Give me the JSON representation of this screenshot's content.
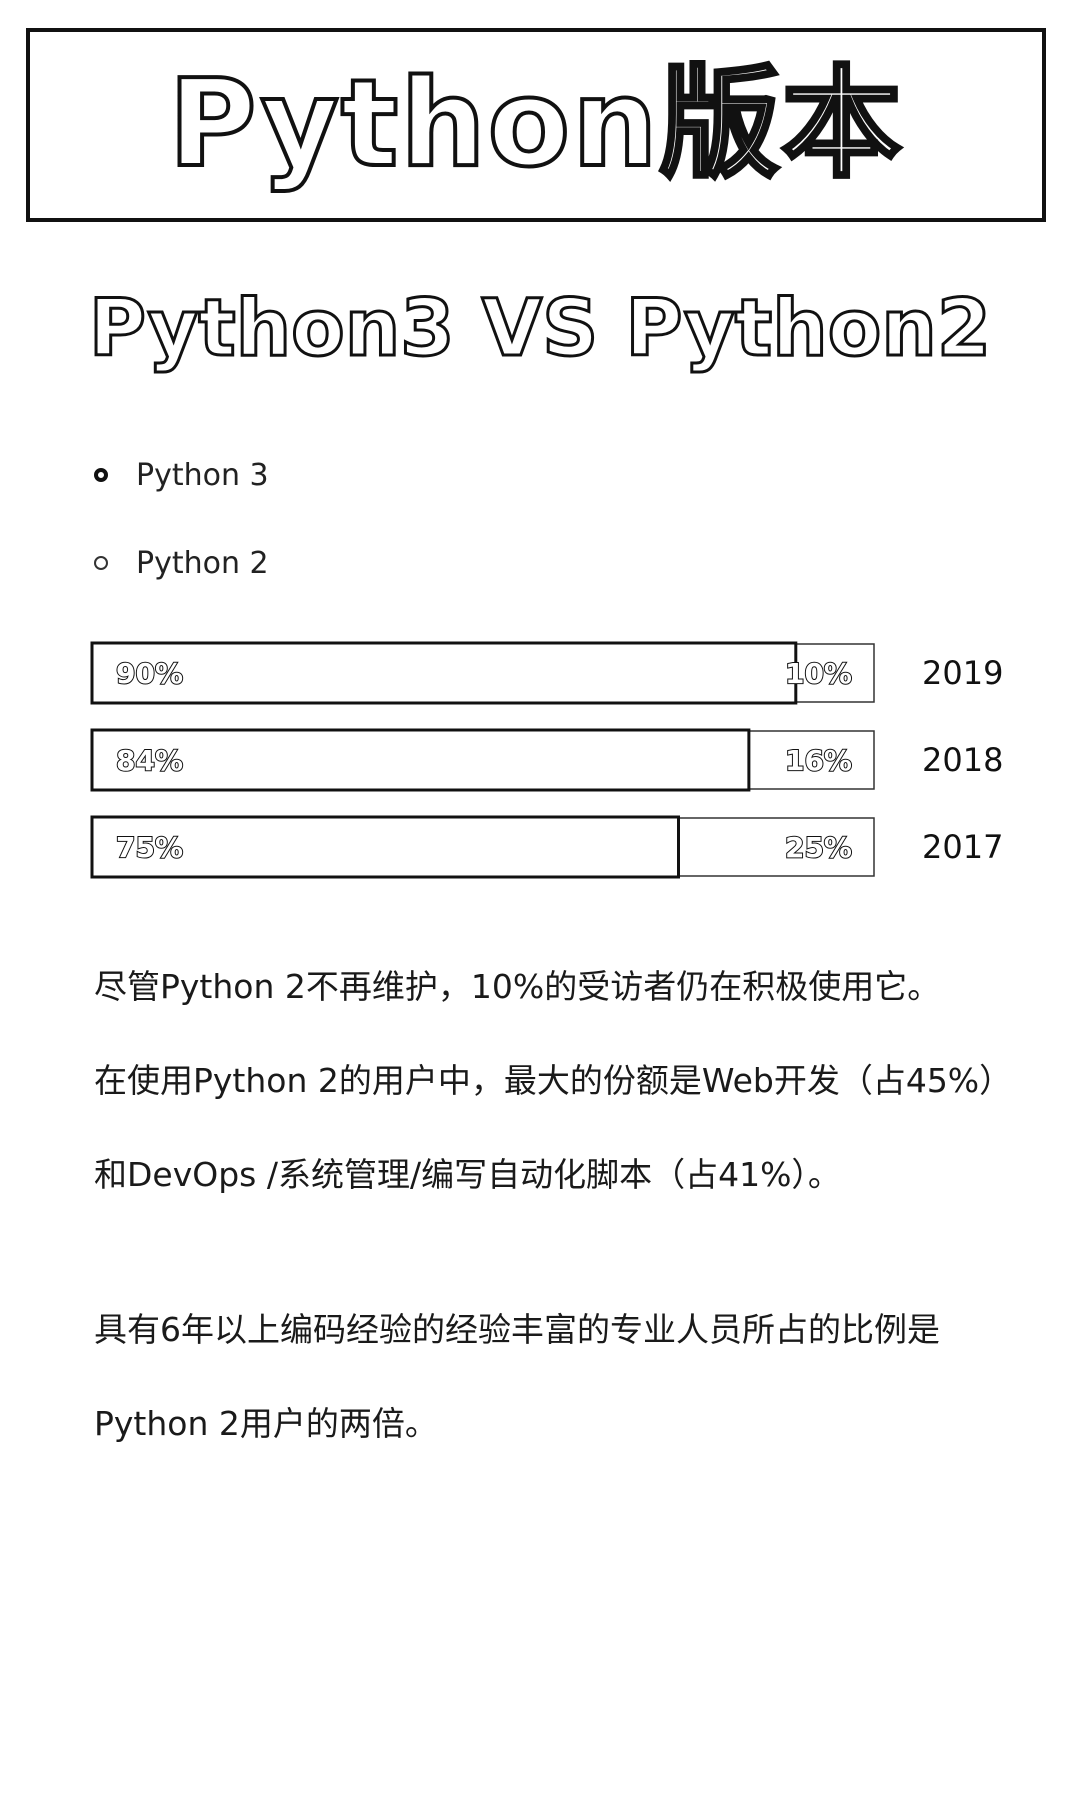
{
  "banner": {
    "title": "Python版本"
  },
  "chart_data": {
    "type": "bar",
    "orientation": "horizontal",
    "stacked": true,
    "title": "Python3 VS Python2",
    "categories": [
      "2019",
      "2018",
      "2017"
    ],
    "series": [
      {
        "name": "Python 3",
        "values": [
          90,
          84,
          75
        ],
        "labels": [
          "90%",
          "84%",
          "75%"
        ]
      },
      {
        "name": "Python 2",
        "values": [
          10,
          16,
          25
        ],
        "labels": [
          "10%",
          "16%",
          "25%"
        ]
      }
    ],
    "xlim": [
      0,
      100
    ],
    "unit": "%",
    "legend": "top-left",
    "grid": false
  },
  "legend": {
    "python3": "Python 3",
    "python2": "Python 2"
  },
  "text": {
    "p1_line1": "尽管Python 2不再维护，10%的受访者仍在积极使用它。",
    "p1_line2": "在使用Python 2的用户中，最大的份额是Web开发（占45%）",
    "p1_line3": "和DevOps /系统管理/编写自动化脚本（占41%）。",
    "p2_line1": "具有6年以上编码经验的经验丰富的专业人员所占的比例是",
    "p2_line2": "Python 2用户的两倍。"
  }
}
